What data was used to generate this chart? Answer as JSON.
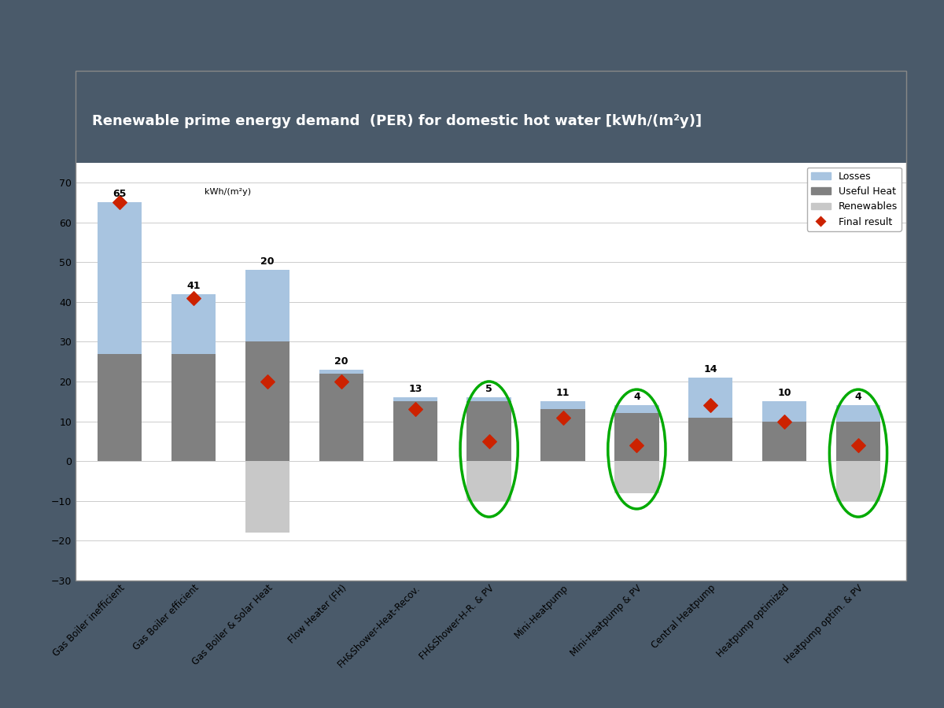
{
  "title": "Renewable prime energy demand  (PER) for domestic hot water [kWh/(m²y)]",
  "ylabel_text": "kWh/(m²y)",
  "ylim": [
    -30,
    75
  ],
  "yticks": [
    -30,
    -20,
    -10,
    0,
    10,
    20,
    30,
    40,
    50,
    60,
    70
  ],
  "categories": [
    "Gas Boiler inefficient",
    "Gas Boiler efficient",
    "Gas Boiler & Solar Heat",
    "Flow Heater (FH)",
    "FH&Shower-Heat-Recov.",
    "FH&Shower-H-R. & PV",
    "Mini-Heatpump",
    "Mini-Heatpump & PV",
    "Central Heatpump",
    "Heatpump optimized",
    "Heatpump optim. & PV"
  ],
  "useful_heat": [
    27,
    27,
    30,
    22,
    15,
    15,
    13,
    12,
    11,
    10,
    10
  ],
  "losses": [
    38,
    15,
    18,
    1,
    1,
    1,
    2,
    2,
    10,
    5,
    4
  ],
  "renewables_neg": [
    0,
    0,
    -18,
    0,
    0,
    -10,
    0,
    -8,
    0,
    0,
    -10
  ],
  "losses_color": "#a8c4e0",
  "useful_heat_color": "#808080",
  "renewables_color": "#c8c8c8",
  "final_results": [
    65,
    41,
    20,
    20,
    13,
    5,
    11,
    4,
    14,
    10,
    4
  ],
  "final_result_color": "#cc2200",
  "circle_indices": [
    5,
    7,
    10
  ],
  "circle_color": "#00aa00",
  "slide_header_color": "#2d3b47",
  "chart_bg": "#ffffff",
  "slide_bg": "#e0e8f0",
  "fig_bg": "#4a5a6a"
}
